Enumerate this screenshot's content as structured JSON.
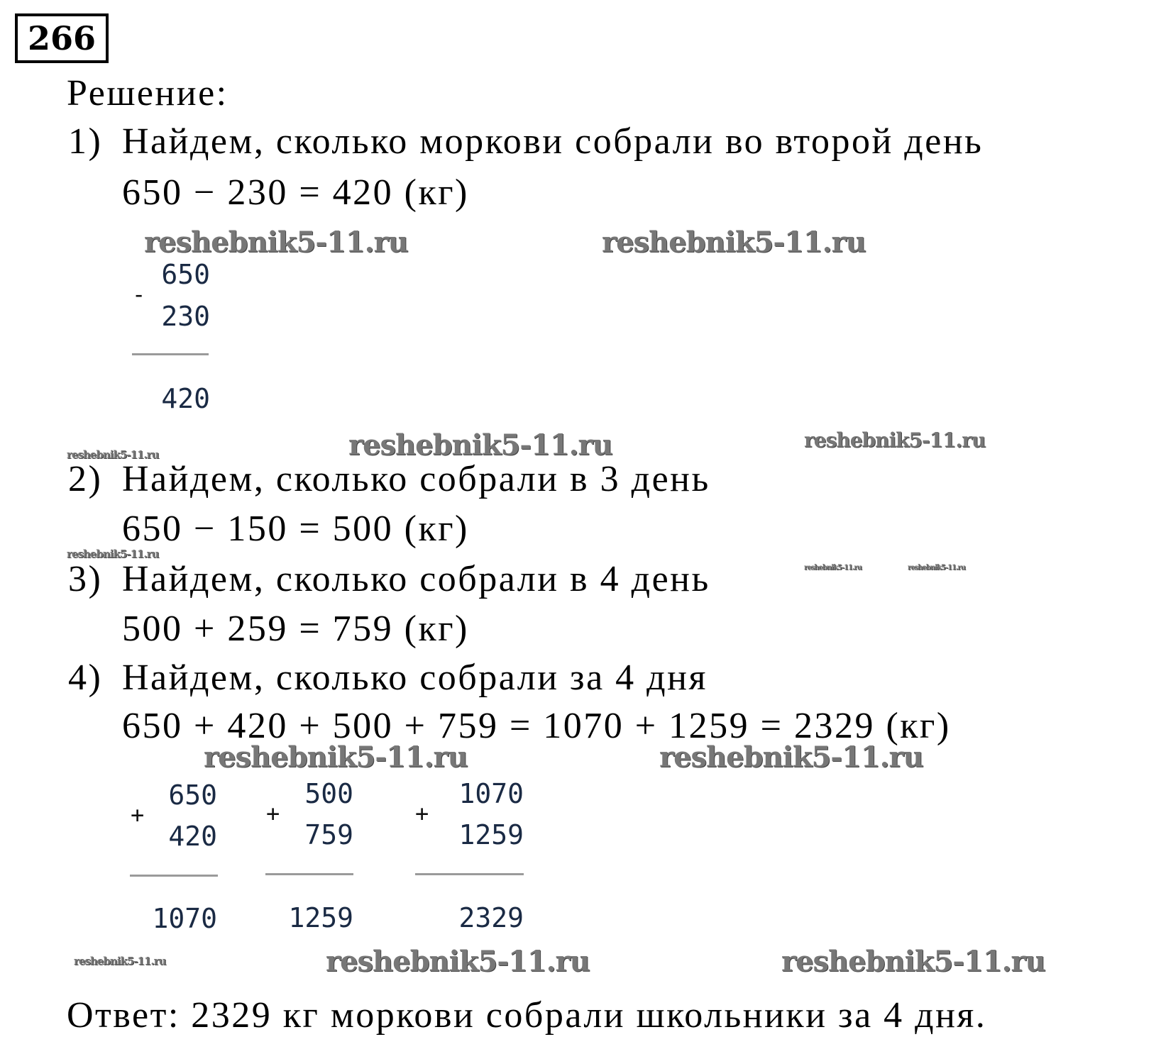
{
  "problem_number": "266",
  "heading": "Решение:",
  "steps": [
    {
      "num": "1)",
      "text": "Найдем, сколько моркови собрали во второй день",
      "equation": "650 − 230 = 420 (кг)"
    },
    {
      "num": "2)",
      "text": "Найдем, сколько собрали в 3 день",
      "equation": "650 − 150 = 500 (кг)"
    },
    {
      "num": "3)",
      "text": "Найдем, сколько собрали в 4 день",
      "equation": "500 + 259 = 759 (кг)"
    },
    {
      "num": "4)",
      "text": "Найдем, сколько собрали за 4 дня",
      "equation": "650 + 420 + 500 + 759 = 1070 + 1259 = 2329 (кг)"
    }
  ],
  "column_calcs": [
    {
      "sign": "-",
      "top": "650",
      "bottom": "230",
      "result": "420"
    },
    {
      "sign": "+",
      "top": "650",
      "bottom": "420",
      "result": "1070"
    },
    {
      "sign": "+",
      "top": "500",
      "bottom": "759",
      "result": "1259"
    },
    {
      "sign": "+",
      "top": "1070",
      "bottom": "1259",
      "result": "2329"
    }
  ],
  "answer": "Ответ: 2329 кг моркови собрали школьники за 4 дня.",
  "watermark": "reshebnik5-11.ru"
}
